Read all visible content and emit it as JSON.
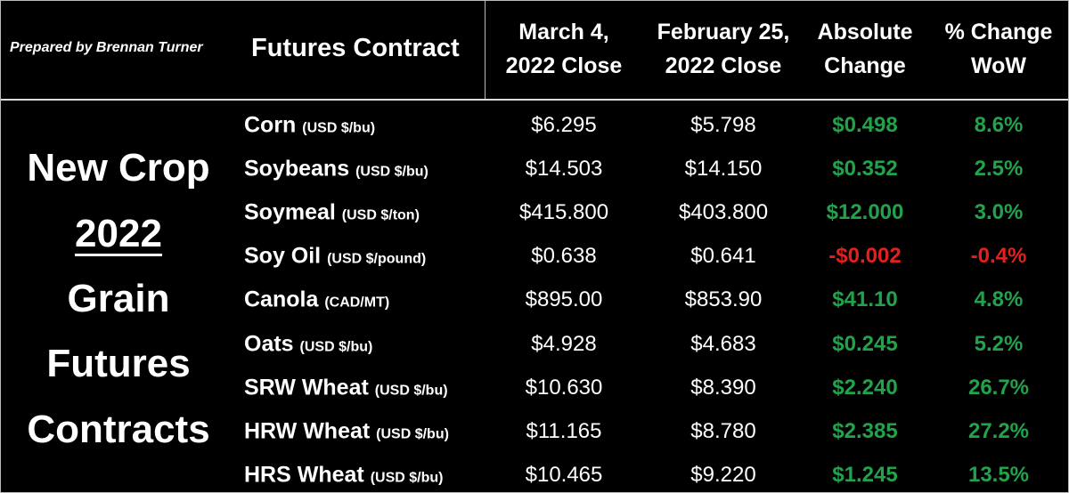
{
  "credit": "Prepared by Brennan Turner",
  "side_title": {
    "lines": [
      "New Crop",
      "2022",
      "Grain",
      "Futures",
      "Contracts"
    ]
  },
  "header": {
    "contract": "Futures Contract",
    "columns": [
      [
        "March 4,",
        "2022 Close"
      ],
      [
        "February 25,",
        "2022 Close"
      ],
      [
        "Absolute",
        "Change"
      ],
      [
        "% Change",
        "WoW"
      ]
    ]
  },
  "table": {
    "rows": [
      {
        "name": "Corn",
        "unit": "(USD $/bu)",
        "cells": [
          "$6.295",
          "$5.798",
          "$0.498",
          "8.6%"
        ]
      },
      {
        "name": "Soybeans",
        "unit": "(USD $/bu)",
        "cells": [
          "$14.503",
          "$14.150",
          "$0.352",
          "2.5%"
        ]
      },
      {
        "name": "Soymeal",
        "unit": "(USD $/ton)",
        "cells": [
          "$415.800",
          "$403.800",
          "$12.000",
          "3.0%"
        ]
      },
      {
        "name": "Soy Oil",
        "unit": "(USD $/pound)",
        "cells": [
          "$0.638",
          "$0.641",
          "-$0.002",
          "-0.4%"
        ]
      },
      {
        "name": "Canola",
        "unit": "(CAD/MT)",
        "cells": [
          "$895.00",
          "$853.90",
          "$41.10",
          "4.8%"
        ]
      },
      {
        "name": "Oats",
        "unit": "(USD $/bu)",
        "cells": [
          "$4.928",
          "$4.683",
          "$0.245",
          "5.2%"
        ]
      },
      {
        "name": "SRW Wheat",
        "unit": "(USD $/bu)",
        "cells": [
          "$10.630",
          "$8.390",
          "$2.240",
          "26.7%"
        ]
      },
      {
        "name": "HRW Wheat",
        "unit": "(USD $/bu)",
        "cells": [
          "$11.165",
          "$8.780",
          "$2.385",
          "27.2%"
        ]
      },
      {
        "name": "HRS Wheat",
        "unit": "(USD $/bu)",
        "cells": [
          "$10.465",
          "$9.220",
          "$1.245",
          "13.5%"
        ]
      }
    ]
  }
}
